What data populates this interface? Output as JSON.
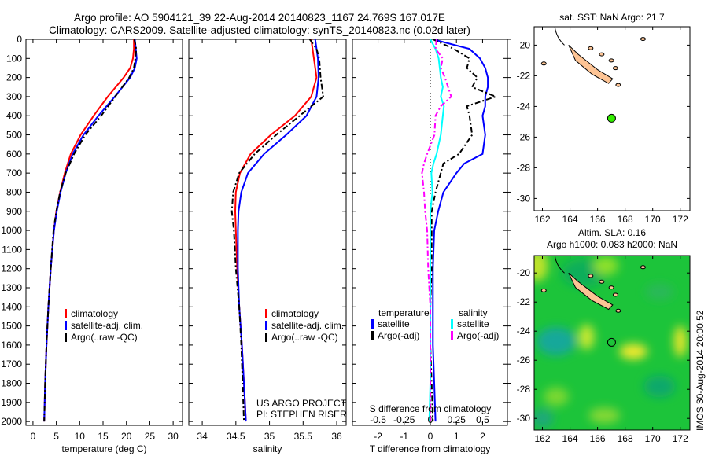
{
  "title": {
    "line1": "Argo profile: AO 5904121_39 22-Aug-2014 20140823_1167 24.769S 167.017E",
    "line2": "Climatology: CARS2009. Satellite-adjusted climatology: synTS_20140823.nc (0.02d later)"
  },
  "colors": {
    "clim": "#ff0000",
    "sat": "#0000ff",
    "argo": "#000000",
    "sal_sat": "#00ffff",
    "sal_argo": "#ff00ff",
    "land": "#fdc495",
    "float": "#33ee00"
  },
  "chart_data": [
    {
      "type": "line",
      "id": "temperature",
      "xlabel": "temperature (deg C)",
      "ylabel": "depth",
      "xlim": [
        -1.5,
        32
      ],
      "ylim": [
        2020,
        0
      ],
      "xticks": [
        0,
        5,
        10,
        15,
        20,
        25,
        30
      ],
      "yticks": [
        0,
        100,
        200,
        300,
        400,
        500,
        600,
        700,
        800,
        900,
        1000,
        1100,
        1200,
        1300,
        1400,
        1500,
        1600,
        1700,
        1800,
        1900,
        2000
      ],
      "depth": [
        0,
        50,
        100,
        150,
        200,
        300,
        400,
        500,
        600,
        700,
        800,
        900,
        1000,
        1200,
        1400,
        1600,
        1800,
        2000
      ],
      "series": [
        {
          "name": "climatology",
          "values": [
            21.6,
            21.6,
            21.4,
            20.8,
            19.4,
            16.0,
            13.0,
            10.2,
            8.1,
            6.8,
            5.8,
            5.0,
            4.5,
            3.8,
            3.3,
            2.9,
            2.6,
            2.4
          ]
        },
        {
          "name": "satellite-adj. clim.",
          "values": [
            21.8,
            22.0,
            22.2,
            21.8,
            20.8,
            17.5,
            14.0,
            10.8,
            8.5,
            7.0,
            5.9,
            5.1,
            4.5,
            3.8,
            3.3,
            2.9,
            2.6,
            2.4
          ]
        },
        {
          "name": "Argo(..raw -QC)",
          "values": [
            21.7,
            22.1,
            21.9,
            21.6,
            20.6,
            17.6,
            14.6,
            11.2,
            8.8,
            7.0,
            5.8,
            5.0,
            4.4,
            3.8,
            3.3,
            2.9,
            2.6,
            2.4
          ]
        }
      ],
      "legend": [
        "climatology",
        "satellite-adj. clim.",
        "Argo(..raw -QC)"
      ]
    },
    {
      "type": "line",
      "id": "salinity",
      "xlabel": "salinity",
      "xlim": [
        33.8,
        36.14
      ],
      "ylim": [
        2020,
        0
      ],
      "xticks": [
        34,
        34.5,
        35,
        35.5,
        36
      ],
      "depth": [
        0,
        50,
        100,
        200,
        300,
        400,
        500,
        600,
        700,
        800,
        900,
        1000,
        1200,
        1400,
        1600,
        1800,
        2000
      ],
      "series": [
        {
          "name": "climatology",
          "values": [
            35.62,
            35.64,
            35.66,
            35.7,
            35.62,
            35.38,
            35.02,
            34.72,
            34.56,
            34.5,
            34.49,
            34.5,
            34.52,
            34.55,
            34.59,
            34.62,
            34.65
          ]
        },
        {
          "name": "satellite-adj. clim.",
          "values": [
            35.68,
            35.7,
            35.72,
            35.73,
            35.7,
            35.55,
            35.25,
            34.92,
            34.68,
            34.58,
            34.54,
            34.53,
            34.53,
            34.55,
            34.59,
            34.62,
            34.65
          ]
        },
        {
          "name": "Argo(..raw -QC)",
          "values": [
            35.6,
            35.7,
            35.74,
            35.76,
            35.8,
            35.45,
            35.1,
            34.78,
            34.55,
            34.46,
            34.44,
            34.47,
            34.5,
            34.55,
            34.58,
            34.6,
            34.62
          ]
        }
      ],
      "legend": [
        "climatology",
        "satellite-adj. clim.",
        "Argo(..raw -QC)"
      ],
      "credit": [
        "US ARGO PROJECT",
        "PI: STEPHEN RISER"
      ]
    },
    {
      "type": "line",
      "id": "difference",
      "xlabel": "T difference from climatology",
      "x2label": "S difference from climatology",
      "xlim": [
        -2.98,
        2.95
      ],
      "ylim": [
        2020,
        0
      ],
      "xticks": [
        -2,
        -1,
        0,
        1,
        2
      ],
      "x2ticks": [
        "-0.5",
        "-0.25",
        "0",
        "0.25",
        "0.5"
      ],
      "depth": [
        0,
        50,
        100,
        150,
        200,
        250,
        300,
        350,
        400,
        500,
        600,
        650,
        700,
        800,
        900,
        1000,
        1200,
        1400,
        1600,
        1800,
        2000
      ],
      "series": [
        {
          "name": "temperature satellite",
          "values": [
            0.1,
            1.5,
            1.9,
            2.1,
            2.2,
            2.2,
            2.1,
            2.1,
            2.0,
            2.1,
            2.0,
            1.3,
            1.0,
            0.5,
            0.3,
            0.15,
            0.1,
            0.1,
            0.1,
            0.15,
            0.2
          ]
        },
        {
          "name": "temperature Argo(-adj)",
          "values": [
            0.1,
            0.9,
            1.5,
            1.4,
            1.8,
            1.6,
            2.5,
            1.4,
            1.5,
            1.6,
            1.1,
            0.5,
            0.4,
            0.2,
            0.05,
            0.05,
            0.05,
            0.0,
            0.0,
            0.05,
            0.1
          ]
        },
        {
          "name": "salinity satellite",
          "values": [
            0.0,
            0.05,
            0.08,
            0.09,
            0.1,
            0.12,
            0.1,
            0.13,
            0.12,
            0.1,
            0.06,
            0.03,
            0.01,
            0.02,
            0.0,
            0.0,
            0.0,
            0.0,
            0.0,
            0.0,
            -0.01
          ]
        },
        {
          "name": "salinity Argo(-adj)",
          "values": [
            0.06,
            0.05,
            0.12,
            0.1,
            0.14,
            0.17,
            0.2,
            0.1,
            0.05,
            0.04,
            -0.03,
            -0.06,
            -0.08,
            -0.06,
            -0.05,
            -0.03,
            -0.02,
            0.0,
            0.0,
            0.0,
            0.0
          ]
        }
      ],
      "legend": {
        "t_head": "temperature",
        "s_head": "salinity",
        "t_sat": "satellite",
        "t_argo": "Argo(-adj)",
        "s_sat": "satellite",
        "s_argo": "Argo(-adj)"
      }
    }
  ],
  "maps": [
    {
      "title": "sat. SST: NaN Argo: 21.7",
      "lonlim": [
        161.4,
        172.7
      ],
      "latlim": [
        -30.8,
        -18.8
      ],
      "xticks": [
        162,
        164,
        166,
        168,
        170,
        172
      ],
      "yticks": [
        -20,
        -22,
        -24,
        -26,
        -28,
        -30
      ],
      "float": [
        167.017,
        -24.769
      ]
    },
    {
      "title1": "Altim. SLA: 0.16",
      "title2": "Argo h1000: 0.083 h2000: NaN",
      "lonlim": [
        161.4,
        172.7
      ],
      "latlim": [
        -30.8,
        -18.8
      ],
      "xticks": [
        162,
        164,
        166,
        168,
        170,
        172
      ],
      "yticks": [
        -20,
        -22,
        -24,
        -26,
        -28,
        -30
      ],
      "float": [
        167.017,
        -24.769
      ]
    }
  ],
  "stamp": "IMOS 30-Aug-2014 20:00:52"
}
